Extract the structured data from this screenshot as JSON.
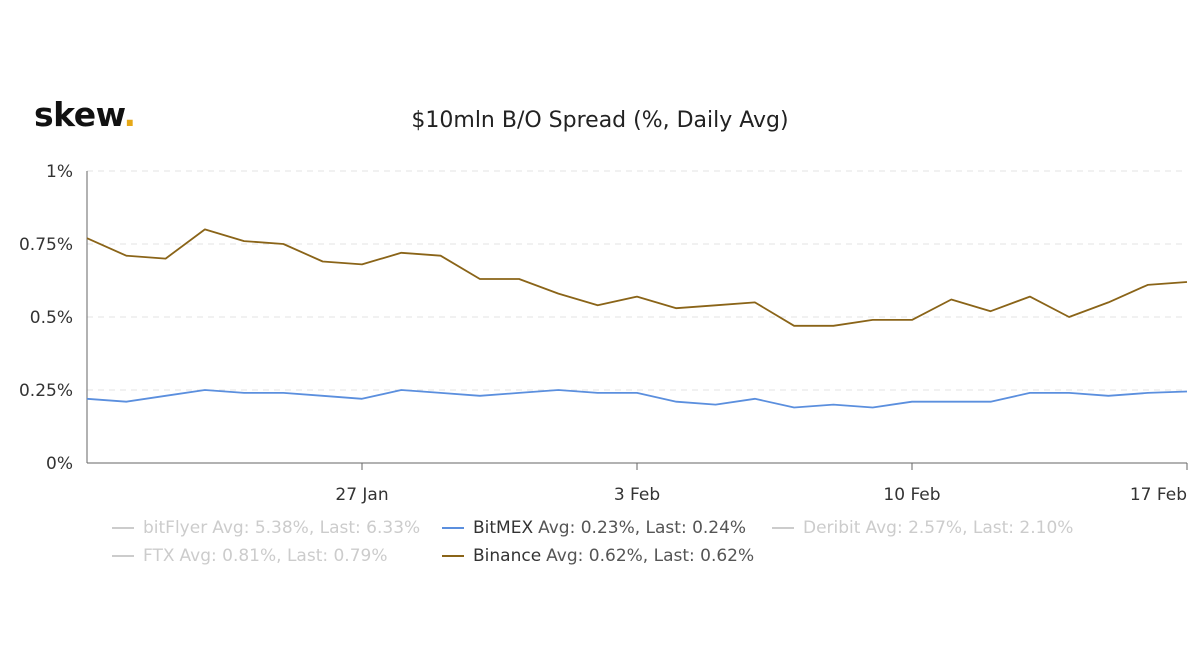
{
  "brand": {
    "name": "skew",
    "dot": ".",
    "dot_color": "#e6a817"
  },
  "chart_data": {
    "type": "line",
    "title": "$10mln B/O Spread (%, Daily Avg)",
    "xlabel": "",
    "ylabel": "",
    "ylim": [
      0,
      1
    ],
    "y_ticks": [
      {
        "value": 0,
        "label": "0%"
      },
      {
        "value": 0.25,
        "label": "0.25%"
      },
      {
        "value": 0.5,
        "label": "0.5%"
      },
      {
        "value": 0.75,
        "label": "0.75%"
      },
      {
        "value": 1,
        "label": "1%"
      }
    ],
    "x_start": "2020-01-20",
    "x_end": "2020-02-17",
    "x_ticks": [
      {
        "date": "2020-01-27",
        "label": "27 Jan"
      },
      {
        "date": "2020-02-03",
        "label": "3 Feb"
      },
      {
        "date": "2020-02-10",
        "label": "10 Feb"
      },
      {
        "date": "2020-02-17",
        "label": "17 Feb"
      }
    ],
    "grid": "horizontal-dashed",
    "legend_position": "bottom",
    "series": [
      {
        "name": "BitMEX",
        "color": "#5b8fde",
        "avg_label": "Avg: 0.23%, Last: 0.24%",
        "visible": true,
        "x": [
          "2020-01-20",
          "2020-01-21",
          "2020-01-22",
          "2020-01-23",
          "2020-01-24",
          "2020-01-25",
          "2020-01-26",
          "2020-01-27",
          "2020-01-28",
          "2020-01-29",
          "2020-01-30",
          "2020-01-31",
          "2020-02-01",
          "2020-02-02",
          "2020-02-03",
          "2020-02-04",
          "2020-02-05",
          "2020-02-06",
          "2020-02-07",
          "2020-02-08",
          "2020-02-09",
          "2020-02-10",
          "2020-02-11",
          "2020-02-12",
          "2020-02-13",
          "2020-02-14",
          "2020-02-15",
          "2020-02-16",
          "2020-02-17"
        ],
        "values": [
          0.22,
          0.21,
          0.23,
          0.25,
          0.24,
          0.24,
          0.23,
          0.22,
          0.25,
          0.24,
          0.23,
          0.24,
          0.25,
          0.24,
          0.24,
          0.21,
          0.2,
          0.22,
          0.19,
          0.2,
          0.19,
          0.21,
          0.21,
          0.21,
          0.24,
          0.24,
          0.23,
          0.24,
          0.245
        ]
      },
      {
        "name": "Binance",
        "color": "#8a6418",
        "avg_label": "Avg: 0.62%, Last: 0.62%",
        "visible": true,
        "x": [
          "2020-01-20",
          "2020-01-21",
          "2020-01-22",
          "2020-01-23",
          "2020-01-24",
          "2020-01-25",
          "2020-01-26",
          "2020-01-27",
          "2020-01-28",
          "2020-01-29",
          "2020-01-30",
          "2020-01-31",
          "2020-02-01",
          "2020-02-02",
          "2020-02-03",
          "2020-02-04",
          "2020-02-05",
          "2020-02-06",
          "2020-02-07",
          "2020-02-08",
          "2020-02-09",
          "2020-02-10",
          "2020-02-11",
          "2020-02-12",
          "2020-02-13",
          "2020-02-14",
          "2020-02-15",
          "2020-02-16",
          "2020-02-17"
        ],
        "values": [
          0.77,
          0.71,
          0.7,
          0.8,
          0.76,
          0.75,
          0.69,
          0.68,
          0.72,
          0.71,
          0.63,
          0.63,
          0.58,
          0.54,
          0.57,
          0.53,
          0.54,
          0.55,
          0.47,
          0.47,
          0.49,
          0.49,
          0.56,
          0.52,
          0.57,
          0.5,
          0.55,
          0.61,
          0.62
        ]
      },
      {
        "name": "bitFlyer",
        "color": "#cccccc",
        "avg_label": "Avg: 5.38%, Last: 6.33%",
        "visible": false,
        "x": [],
        "values": []
      },
      {
        "name": "Deribit",
        "color": "#cccccc",
        "avg_label": "Avg: 2.57%, Last: 2.10%",
        "visible": false,
        "x": [],
        "values": []
      },
      {
        "name": "FTX",
        "color": "#cccccc",
        "avg_label": "Avg: 0.81%, Last: 0.79%",
        "visible": false,
        "x": [],
        "values": []
      }
    ]
  },
  "legend": {
    "rows": [
      [
        {
          "name": "bitFlyer",
          "stats": "Avg: 5.38%, Last: 6.33%",
          "state": "hidden",
          "color": "#cccccc"
        },
        {
          "name": "BitMEX",
          "stats": "Avg: 0.23%, Last: 0.24%",
          "state": "visible",
          "color": "#5b8fde"
        },
        {
          "name": "Deribit",
          "stats": "Avg: 2.57%, Last: 2.10%",
          "state": "hidden",
          "color": "#cccccc"
        }
      ],
      [
        {
          "name": "FTX",
          "stats": "Avg: 0.81%, Last: 0.79%",
          "state": "hidden",
          "color": "#cccccc"
        },
        {
          "name": "Binance",
          "stats": "Avg: 0.62%, Last: 0.62%",
          "state": "visible",
          "color": "#8a6418"
        }
      ]
    ]
  }
}
